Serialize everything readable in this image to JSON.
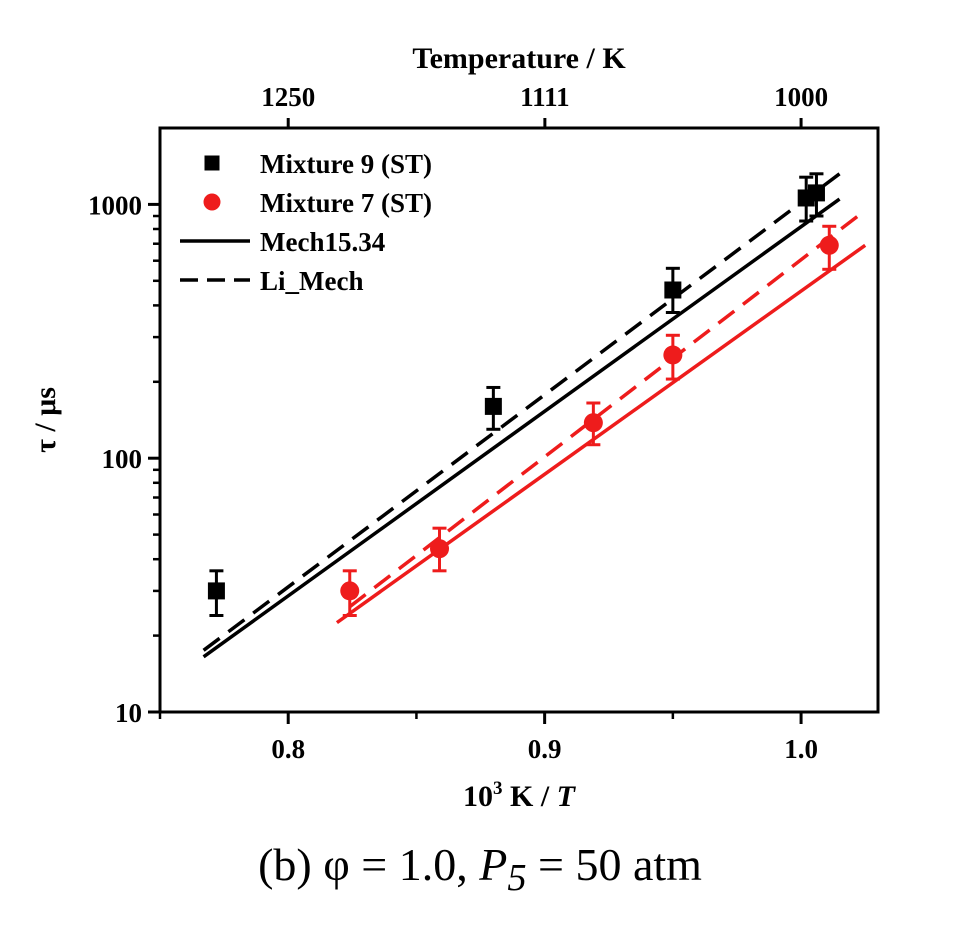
{
  "chart_data": {
    "type": "scatter",
    "x_axis": {
      "label": "10³ K / T",
      "label_base": "10",
      "label_exp": "3",
      "label_unit": " K / ",
      "label_var": "T",
      "range": [
        0.75,
        1.03
      ],
      "ticks": [
        0.8,
        0.9,
        1.0
      ],
      "tick_labels": [
        "0.8",
        "0.9",
        "1.0"
      ]
    },
    "top_axis": {
      "label": "Temperature / K",
      "tick_temperatures": [
        1250,
        1111,
        1000
      ],
      "tick_labels": [
        "1250",
        "1111",
        "1000"
      ]
    },
    "y_axis": {
      "label": "τ / μs",
      "scale": "log",
      "range": [
        10,
        2000
      ],
      "ticks": [
        10,
        100,
        1000
      ],
      "tick_labels": [
        "10",
        "100",
        "1000"
      ]
    },
    "series": [
      {
        "name": "Mixture 9 (ST)",
        "kind": "points",
        "marker": "square",
        "color": "#000000",
        "x": [
          0.772,
          0.88,
          0.95,
          1.002,
          1.006
        ],
        "y": [
          30,
          160,
          460,
          1060,
          1110
        ],
        "err_low": [
          24,
          130,
          375,
          860,
          900
        ],
        "err_high": [
          36,
          190,
          560,
          1280,
          1320
        ]
      },
      {
        "name": "Mixture 7 (ST)",
        "kind": "points",
        "marker": "circle",
        "color": "#ee1c1c",
        "x": [
          0.824,
          0.859,
          0.919,
          0.95,
          1.011
        ],
        "y": [
          30,
          44,
          138,
          255,
          690
        ],
        "err_low": [
          24,
          36,
          113,
          205,
          555
        ],
        "err_high": [
          36,
          53,
          165,
          305,
          820
        ]
      },
      {
        "name": "Mech15.34",
        "kind": "line",
        "style": "solid",
        "color": "#000000",
        "x": [
          0.767,
          1.015
        ],
        "y": [
          16.5,
          1050
        ]
      },
      {
        "name": "Li_Mech",
        "kind": "line",
        "style": "dashed",
        "color": "#000000",
        "x": [
          0.767,
          1.015
        ],
        "y": [
          17.5,
          1320
        ]
      },
      {
        "name": "",
        "kind": "line",
        "style": "solid",
        "color": "#ee1c1c",
        "x": [
          0.819,
          1.025
        ],
        "y": [
          22.5,
          690
        ]
      },
      {
        "name": "",
        "kind": "line",
        "style": "dashed",
        "color": "#ee1c1c",
        "x": [
          0.824,
          1.024
        ],
        "y": [
          26,
          930
        ]
      }
    ],
    "legend_position": "top-left",
    "grid": false
  },
  "caption": {
    "prefix": "(b) φ = 1.0, ",
    "var": "P",
    "sub": "5",
    "suffix": " = 50 atm"
  }
}
